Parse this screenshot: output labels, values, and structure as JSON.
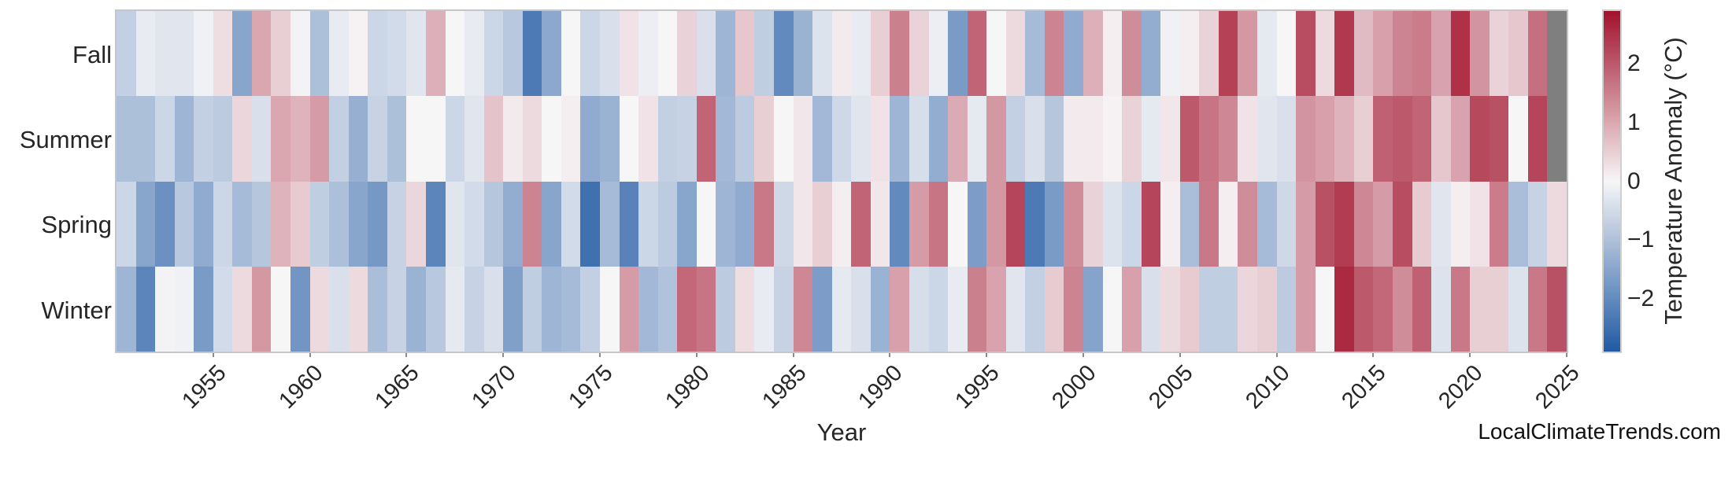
{
  "figure": {
    "x_axis_title": "Year",
    "watermark": "LocalClimateTrends.com"
  },
  "chart_data": {
    "type": "heatmap",
    "title": "",
    "xlabel": "Year",
    "categories": [
      "Fall",
      "Summer",
      "Spring",
      "Winter"
    ],
    "year_start": 1950,
    "year_end": 2024,
    "x_tick_labels": [
      "1955",
      "1960",
      "1965",
      "1970",
      "1975",
      "1980",
      "1985",
      "1990",
      "1995",
      "2000",
      "2005",
      "2010",
      "2015",
      "2020",
      "2025"
    ],
    "x_tick_years": [
      1955,
      1960,
      1965,
      1970,
      1975,
      1980,
      1985,
      1990,
      1995,
      2000,
      2005,
      2010,
      2015,
      2020,
      2025
    ],
    "legend_position": "right-colorbar",
    "grid": false,
    "colorbar": {
      "label": "Temperature Anomaly (°C)",
      "tick_labels": [
        "2",
        "1",
        "0",
        "−1",
        "−2"
      ],
      "tick_values": [
        2,
        1,
        0,
        -1,
        -2
      ],
      "vmin": -2.9,
      "vmax": 2.9,
      "positive_end_color": "#a2122c",
      "mid_color": "#f7f6f7",
      "negative_end_color": "#215aa4",
      "missing_color": "#7f7f7f"
    },
    "series": [
      {
        "name": "Fall",
        "values": [
          -0.7,
          -0.2,
          -0.3,
          -0.3,
          -0.1,
          0.3,
          -1.5,
          1.0,
          0.5,
          -0.05,
          -1.0,
          -0.2,
          0.05,
          -0.6,
          -0.5,
          -0.3,
          0.9,
          0.0,
          -0.2,
          -0.6,
          -0.85,
          -2.3,
          -1.45,
          0.0,
          -0.6,
          -0.4,
          0.25,
          -0.15,
          0.0,
          0.45,
          -0.4,
          -1.2,
          0.6,
          -0.75,
          -2.0,
          -1.25,
          -0.35,
          0.15,
          -0.2,
          0.5,
          1.5,
          0.45,
          -0.15,
          -1.7,
          1.85,
          0.0,
          0.35,
          -1.1,
          1.45,
          -1.4,
          0.9,
          0.1,
          1.35,
          -1.35,
          -0.1,
          0.1,
          0.45,
          2.3,
          1.2,
          -0.25,
          0.0,
          2.15,
          0.35,
          2.4,
          0.75,
          1.1,
          1.45,
          1.55,
          1.05,
          2.5,
          1.25,
          0.45,
          0.6,
          1.7,
          null
        ]
      },
      {
        "name": "Summer",
        "values": [
          -1.0,
          -1.0,
          -0.6,
          -1.2,
          -0.7,
          -0.8,
          0.4,
          -0.4,
          1.0,
          0.85,
          1.15,
          -0.7,
          -1.3,
          -0.65,
          -1.0,
          0.0,
          0.0,
          -0.6,
          -0.3,
          0.65,
          0.15,
          0.35,
          0.0,
          0.1,
          -1.4,
          -1.25,
          0.0,
          0.25,
          -0.7,
          -0.65,
          1.85,
          -1.15,
          -0.8,
          0.5,
          0.0,
          0.2,
          -1.15,
          -0.55,
          -0.3,
          0.25,
          -1.2,
          -0.45,
          -1.35,
          0.95,
          -0.25,
          1.2,
          -0.7,
          -0.4,
          -0.9,
          0.15,
          0.15,
          0.05,
          0.45,
          -0.25,
          0.2,
          2.0,
          1.65,
          1.4,
          0.25,
          -0.3,
          -0.4,
          1.25,
          1.1,
          0.85,
          0.5,
          1.9,
          2.0,
          1.85,
          0.6,
          1.05,
          2.2,
          2.1,
          0.0,
          2.25,
          null
        ]
      },
      {
        "name": "Spring",
        "values": [
          -0.6,
          -1.5,
          -1.9,
          -0.85,
          -1.4,
          -0.6,
          -1.1,
          -0.9,
          0.85,
          0.55,
          -0.75,
          -1.0,
          -1.5,
          -1.75,
          -0.65,
          0.4,
          -2.1,
          -0.3,
          -0.5,
          -0.9,
          -1.35,
          1.45,
          -1.5,
          -0.5,
          -2.5,
          -1.1,
          -2.15,
          -0.6,
          -0.8,
          -1.5,
          0.0,
          -1.2,
          -1.4,
          1.6,
          -0.55,
          0.2,
          0.5,
          0.1,
          1.85,
          0.2,
          -2.0,
          1.15,
          1.65,
          0.0,
          -1.65,
          1.2,
          2.25,
          -2.3,
          -1.7,
          1.35,
          0.45,
          -0.35,
          -0.6,
          2.25,
          0.1,
          -1.05,
          1.6,
          0.1,
          1.35,
          -1.1,
          -0.55,
          1.15,
          2.1,
          2.35,
          1.4,
          1.15,
          2.15,
          0.55,
          -0.3,
          0.1,
          0.25,
          1.55,
          -1.05,
          -0.65,
          0.35
        ]
      },
      {
        "name": "Winter",
        "values": [
          -1.2,
          -2.1,
          -0.05,
          -0.1,
          -1.7,
          -0.5,
          0.35,
          1.2,
          0.0,
          -1.8,
          0.35,
          -0.4,
          0.35,
          -1.05,
          -0.65,
          -1.25,
          -0.85,
          -0.25,
          -0.65,
          -0.4,
          -1.6,
          -0.75,
          -1.2,
          -1.1,
          -0.7,
          0.0,
          1.15,
          -1.15,
          -0.95,
          1.8,
          1.65,
          -0.8,
          0.3,
          -0.2,
          -0.65,
          1.4,
          -1.65,
          -0.25,
          -0.4,
          -1.25,
          1.1,
          -0.45,
          -0.6,
          -0.2,
          1.5,
          1.05,
          -0.3,
          -0.7,
          0.55,
          1.45,
          -1.55,
          0.0,
          1.1,
          -0.4,
          0.35,
          0.55,
          -0.75,
          -0.75,
          0.4,
          0.5,
          -0.8,
          1.15,
          0.0,
          2.6,
          2.0,
          1.8,
          1.35,
          1.9,
          -0.35,
          1.6,
          0.5,
          0.5,
          -0.35,
          1.6,
          2.1
        ]
      }
    ],
    "watermark": "LocalClimateTrends.com"
  }
}
